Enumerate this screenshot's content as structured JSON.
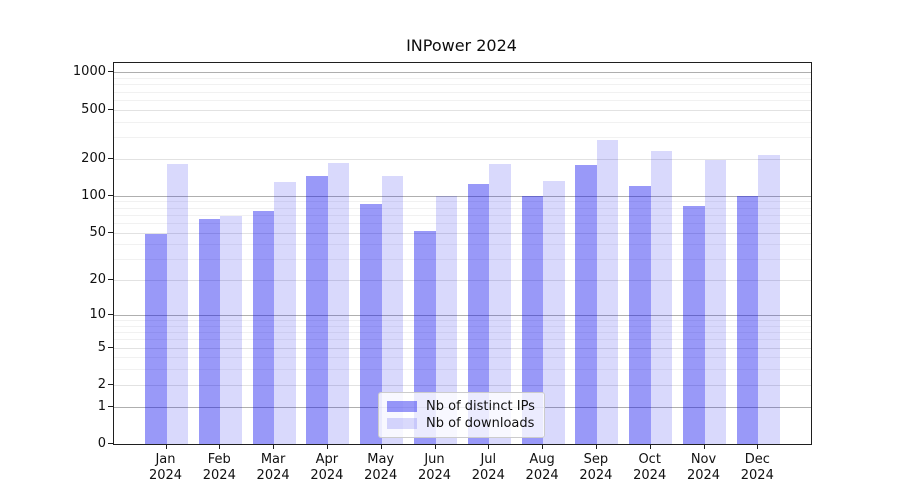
{
  "chart_data": {
    "type": "bar",
    "title": "INPower 2024",
    "categories": [
      "Jan 2024",
      "Feb 2024",
      "Mar 2024",
      "Apr 2024",
      "May 2024",
      "Jun 2024",
      "Jul 2024",
      "Aug 2024",
      "Sep 2024",
      "Oct 2024",
      "Nov 2024",
      "Dec 2024"
    ],
    "series": [
      {
        "name": "Nb of distinct IPs",
        "color": "rgba(0,0,238,0.4)",
        "values": [
          49,
          65,
          75,
          145,
          86,
          51,
          125,
          99,
          177,
          121,
          82,
          99
        ]
      },
      {
        "name": "Nb of downloads",
        "color": "rgba(0,0,238,0.15)",
        "values": [
          182,
          68,
          130,
          185,
          144,
          100,
          180,
          131,
          283,
          233,
          197,
          216
        ]
      }
    ],
    "xlabel": "",
    "ylabel": "",
    "yscale": "log1p",
    "yticks": [
      0,
      1,
      2,
      5,
      10,
      20,
      50,
      100,
      200,
      500,
      1000
    ],
    "minor_yticks": [
      3,
      4,
      6,
      7,
      8,
      9,
      30,
      40,
      60,
      70,
      80,
      90,
      300,
      400,
      600,
      700,
      800,
      900
    ],
    "ylim": [
      0,
      1200
    ],
    "grid": true,
    "legend_position": "lower center"
  }
}
